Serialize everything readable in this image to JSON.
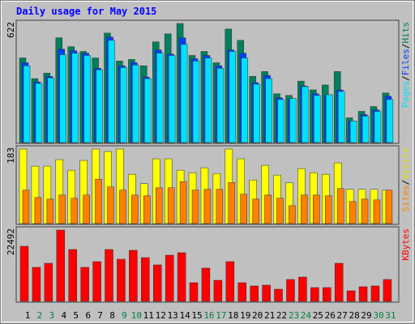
{
  "chart_data": [
    {
      "type": "bar",
      "title": "Daily usage for May 2015",
      "ylim": [
        0,
        622
      ],
      "yticks": [
        622
      ],
      "legend_separator": "/",
      "series": [
        {
          "name": "Hits",
          "color": "#00805c",
          "values": [
            442,
            334,
            363,
            547,
            501,
            476,
            442,
            572,
            426,
            434,
            401,
            526,
            568,
            622,
            455,
            476,
            417,
            593,
            534,
            346,
            371,
            255,
            246,
            321,
            275,
            301,
            371,
            129,
            163,
            188,
            259
          ]
        },
        {
          "name": "Files",
          "color": "#0040ff",
          "values": [
            417,
            317,
            346,
            488,
            480,
            467,
            388,
            551,
            401,
            417,
            342,
            484,
            463,
            547,
            438,
            455,
            401,
            484,
            467,
            313,
            351,
            234,
            225,
            296,
            255,
            246,
            275,
            113,
            146,
            171,
            242
          ]
        },
        {
          "name": "Pages",
          "color": "#00e0ff",
          "values": [
            401,
            309,
            338,
            459,
            467,
            455,
            380,
            534,
            392,
            405,
            334,
            467,
            455,
            513,
            426,
            442,
            388,
            476,
            442,
            305,
            334,
            225,
            230,
            292,
            246,
            250,
            267,
            113,
            138,
            163,
            225
          ]
        }
      ]
    },
    {
      "type": "bar",
      "ylim": [
        0,
        183
      ],
      "yticks": [
        183
      ],
      "legend_separator": "/",
      "series": [
        {
          "name": "Visits",
          "color": "#ffff00",
          "values": [
            183,
            141,
            141,
            157,
            131,
            155,
            183,
            177,
            183,
            121,
            98,
            159,
            159,
            131,
            125,
            137,
            123,
            183,
            159,
            107,
            143,
            119,
            100,
            135,
            125,
            121,
            149,
            84,
            84,
            84,
            82
          ]
        },
        {
          "name": "Sites",
          "color": "#ff8000",
          "values": [
            82,
            64,
            60,
            70,
            62,
            70,
            109,
            90,
            82,
            70,
            68,
            88,
            88,
            103,
            82,
            84,
            84,
            101,
            72,
            60,
            70,
            62,
            44,
            70,
            70,
            68,
            86,
            54,
            60,
            58,
            82
          ]
        }
      ]
    },
    {
      "type": "bar",
      "ylim": [
        0,
        22492
      ],
      "yticks": [
        22492
      ],
      "categories": [
        "1",
        "2",
        "3",
        "4",
        "5",
        "6",
        "7",
        "8",
        "9",
        "10",
        "11",
        "12",
        "13",
        "14",
        "15",
        "16",
        "17",
        "18",
        "19",
        "20",
        "21",
        "22",
        "23",
        "24",
        "25",
        "26",
        "27",
        "28",
        "29",
        "30",
        "31"
      ],
      "category_colors": [
        "#000000",
        "#008040",
        "#008040",
        "#000000",
        "#000000",
        "#000000",
        "#000000",
        "#000000",
        "#008040",
        "#008040",
        "#000000",
        "#000000",
        "#000000",
        "#000000",
        "#000000",
        "#008040",
        "#008040",
        "#000000",
        "#000000",
        "#000000",
        "#000000",
        "#000000",
        "#008040",
        "#008040",
        "#000000",
        "#000000",
        "#000000",
        "#000000",
        "#000000",
        "#008040",
        "#008040"
      ],
      "series": [
        {
          "name": "KBytes",
          "color": "#ff0000",
          "values": [
            17381,
            10735,
            12013,
            22492,
            16358,
            10735,
            12524,
            16358,
            13291,
            16103,
            13802,
            11502,
            14569,
            15336,
            5879,
            10480,
            6645,
            12524,
            5879,
            4856,
            5112,
            3834,
            6901,
            7668,
            4345,
            4345,
            12013,
            3323,
            4601,
            4856,
            6901
          ]
        }
      ]
    }
  ]
}
